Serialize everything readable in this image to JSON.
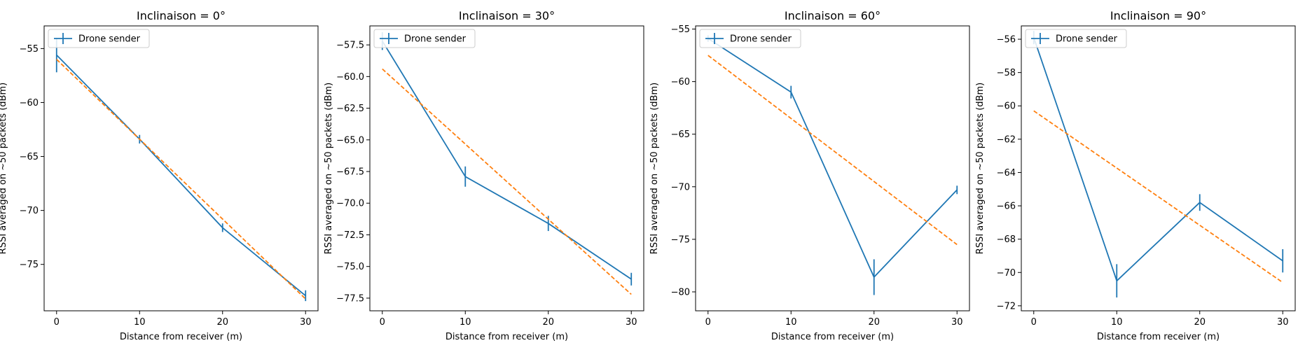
{
  "chart_data": [
    {
      "type": "line",
      "title": "Inclinaison = 0°",
      "xlabel": "Distance from receiver (m)",
      "ylabel": "RSSI averaged on ~50 packets (dBm)",
      "xlim": [
        -1.5,
        31.5
      ],
      "ylim": [
        -79.3,
        -52.9
      ],
      "xticks": [
        0,
        10,
        20,
        30
      ],
      "yticks": [
        -55,
        -60,
        -65,
        -70,
        -75
      ],
      "ytick_labels": [
        "−55",
        "−60",
        "−65",
        "−70",
        "−75"
      ],
      "legend": {
        "position": "upper left",
        "entries": [
          "Drone sender"
        ]
      },
      "series": [
        {
          "name": "Drone sender",
          "color": "#1f77b4",
          "x": [
            0,
            10,
            20,
            30
          ],
          "y": [
            -55.6,
            -63.4,
            -71.6,
            -77.9
          ],
          "yerr": [
            1.6,
            0.4,
            0.4,
            0.5
          ]
        },
        {
          "style": "dashed",
          "color": "#ff7f0e",
          "x": [
            0,
            30
          ],
          "y": [
            -56.0,
            -78.2
          ]
        }
      ]
    },
    {
      "type": "line",
      "title": "Inclinaison = 30°",
      "xlabel": "Distance from receiver (m)",
      "ylabel": "RSSI averaged on ~50 packets (dBm)",
      "xlim": [
        -1.5,
        31.5
      ],
      "ylim": [
        -78.5,
        -56.0
      ],
      "xticks": [
        0,
        10,
        20,
        30
      ],
      "yticks": [
        -57.5,
        -60,
        -62.5,
        -65,
        -67.5,
        -70,
        -72.5,
        -75,
        -77.5
      ],
      "ytick_labels": [
        "−57.5",
        "−60.0",
        "−62.5",
        "−65.0",
        "−67.5",
        "−70.0",
        "−72.5",
        "−75.0",
        "−77.5"
      ],
      "legend": {
        "position": "upper left",
        "entries": [
          "Drone sender"
        ]
      },
      "series": [
        {
          "name": "Drone sender",
          "color": "#1f77b4",
          "x": [
            0,
            10,
            20,
            30
          ],
          "y": [
            -57.2,
            -67.9,
            -71.6,
            -76.0
          ],
          "yerr": [
            0.7,
            0.8,
            0.6,
            0.5
          ]
        },
        {
          "style": "dashed",
          "color": "#ff7f0e",
          "x": [
            0,
            30
          ],
          "y": [
            -59.4,
            -77.2
          ]
        }
      ]
    },
    {
      "type": "line",
      "title": "Inclinaison = 60°",
      "xlabel": "Distance from receiver (m)",
      "ylabel": "RSSI averaged on ~50 packets (dBm)",
      "xlim": [
        -1.5,
        31.5
      ],
      "ylim": [
        -81.8,
        -54.7
      ],
      "xticks": [
        0,
        10,
        20,
        30
      ],
      "yticks": [
        -55,
        -60,
        -65,
        -70,
        -75,
        -80
      ],
      "ytick_labels": [
        "−55",
        "−60",
        "−65",
        "−70",
        "−75",
        "−80"
      ],
      "legend": {
        "position": "upper left",
        "entries": [
          "Drone sender"
        ]
      },
      "series": [
        {
          "name": "Drone sender",
          "color": "#1f77b4",
          "x": [
            0,
            10,
            20,
            30
          ],
          "y": [
            -55.9,
            -61.0,
            -78.6,
            -70.3
          ],
          "yerr": [
            0.3,
            0.6,
            1.7,
            0.4
          ]
        },
        {
          "style": "dashed",
          "color": "#ff7f0e",
          "x": [
            0,
            30
          ],
          "y": [
            -57.5,
            -75.5
          ]
        }
      ]
    },
    {
      "type": "line",
      "title": "Inclinaison = 90°",
      "xlabel": "Distance from receiver (m)",
      "ylabel": "RSSI averaged on ~50 packets (dBm)",
      "xlim": [
        -1.5,
        31.5
      ],
      "ylim": [
        -72.3,
        -55.2
      ],
      "xticks": [
        0,
        10,
        20,
        30
      ],
      "yticks": [
        -56,
        -58,
        -60,
        -62,
        -64,
        -66,
        -68,
        -70,
        -72
      ],
      "ytick_labels": [
        "−56",
        "−58",
        "−60",
        "−62",
        "−64",
        "−66",
        "−68",
        "−70",
        "−72"
      ],
      "legend": {
        "position": "upper left",
        "entries": [
          "Drone sender"
        ]
      },
      "series": [
        {
          "name": "Drone sender",
          "color": "#1f77b4",
          "x": [
            0,
            10,
            20,
            30
          ],
          "y": [
            -55.9,
            -70.5,
            -65.8,
            -69.3
          ],
          "yerr": [
            0.4,
            1.0,
            0.5,
            0.7
          ]
        },
        {
          "style": "dashed",
          "color": "#ff7f0e",
          "x": [
            0,
            30
          ],
          "y": [
            -60.3,
            -70.6
          ]
        }
      ]
    }
  ]
}
